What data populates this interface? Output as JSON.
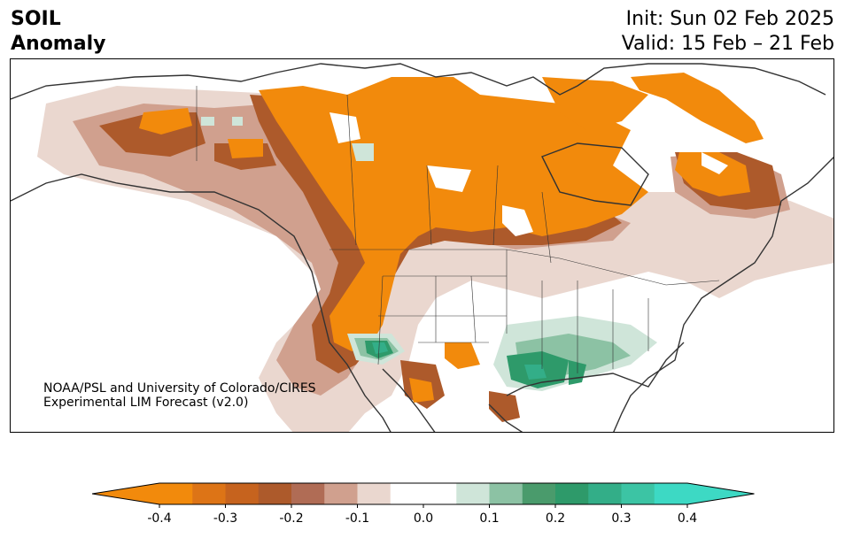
{
  "header": {
    "variable": "SOIL",
    "subtitle": "Anomaly",
    "init": "Init: Sun 02 Feb 2025",
    "valid": "Valid: 15 Feb – 21 Feb"
  },
  "credit": {
    "line1": "NOAA/PSL and University of Colorado/CIRES",
    "line2": "Experimental LIM Forecast (v2.0)"
  },
  "colorbar": {
    "ticks": [
      "-0.4",
      "-0.3",
      "-0.2",
      "-0.1",
      "0.0",
      "0.1",
      "0.2",
      "0.3",
      "0.4"
    ],
    "bins": [
      {
        "from": -0.4,
        "to": -0.35,
        "color": "#f28a0c"
      },
      {
        "from": -0.35,
        "to": -0.3,
        "color": "#dd7416"
      },
      {
        "from": -0.3,
        "to": -0.25,
        "color": "#c6631e"
      },
      {
        "from": -0.25,
        "to": -0.2,
        "color": "#ad5a2b"
      },
      {
        "from": -0.2,
        "to": -0.15,
        "color": "#b06c55"
      },
      {
        "from": -0.15,
        "to": -0.1,
        "color": "#d0a08e"
      },
      {
        "from": -0.1,
        "to": -0.05,
        "color": "#ead7cf"
      },
      {
        "from": -0.05,
        "to": 0.05,
        "color": "#ffffff"
      },
      {
        "from": 0.05,
        "to": 0.1,
        "color": "#cfe5d9"
      },
      {
        "from": 0.1,
        "to": 0.15,
        "color": "#8cc2a4"
      },
      {
        "from": 0.15,
        "to": 0.2,
        "color": "#4a9b6c"
      },
      {
        "from": 0.2,
        "to": 0.25,
        "color": "#2e9a6a"
      },
      {
        "from": 0.25,
        "to": 0.3,
        "color": "#33ae88"
      },
      {
        "from": 0.3,
        "to": 0.35,
        "color": "#3cc4a4"
      },
      {
        "from": 0.35,
        "to": 0.4,
        "color": "#3dd9c4"
      }
    ],
    "extend_low_color": "#f28a0c",
    "extend_high_color": "#3dd9c4"
  }
}
